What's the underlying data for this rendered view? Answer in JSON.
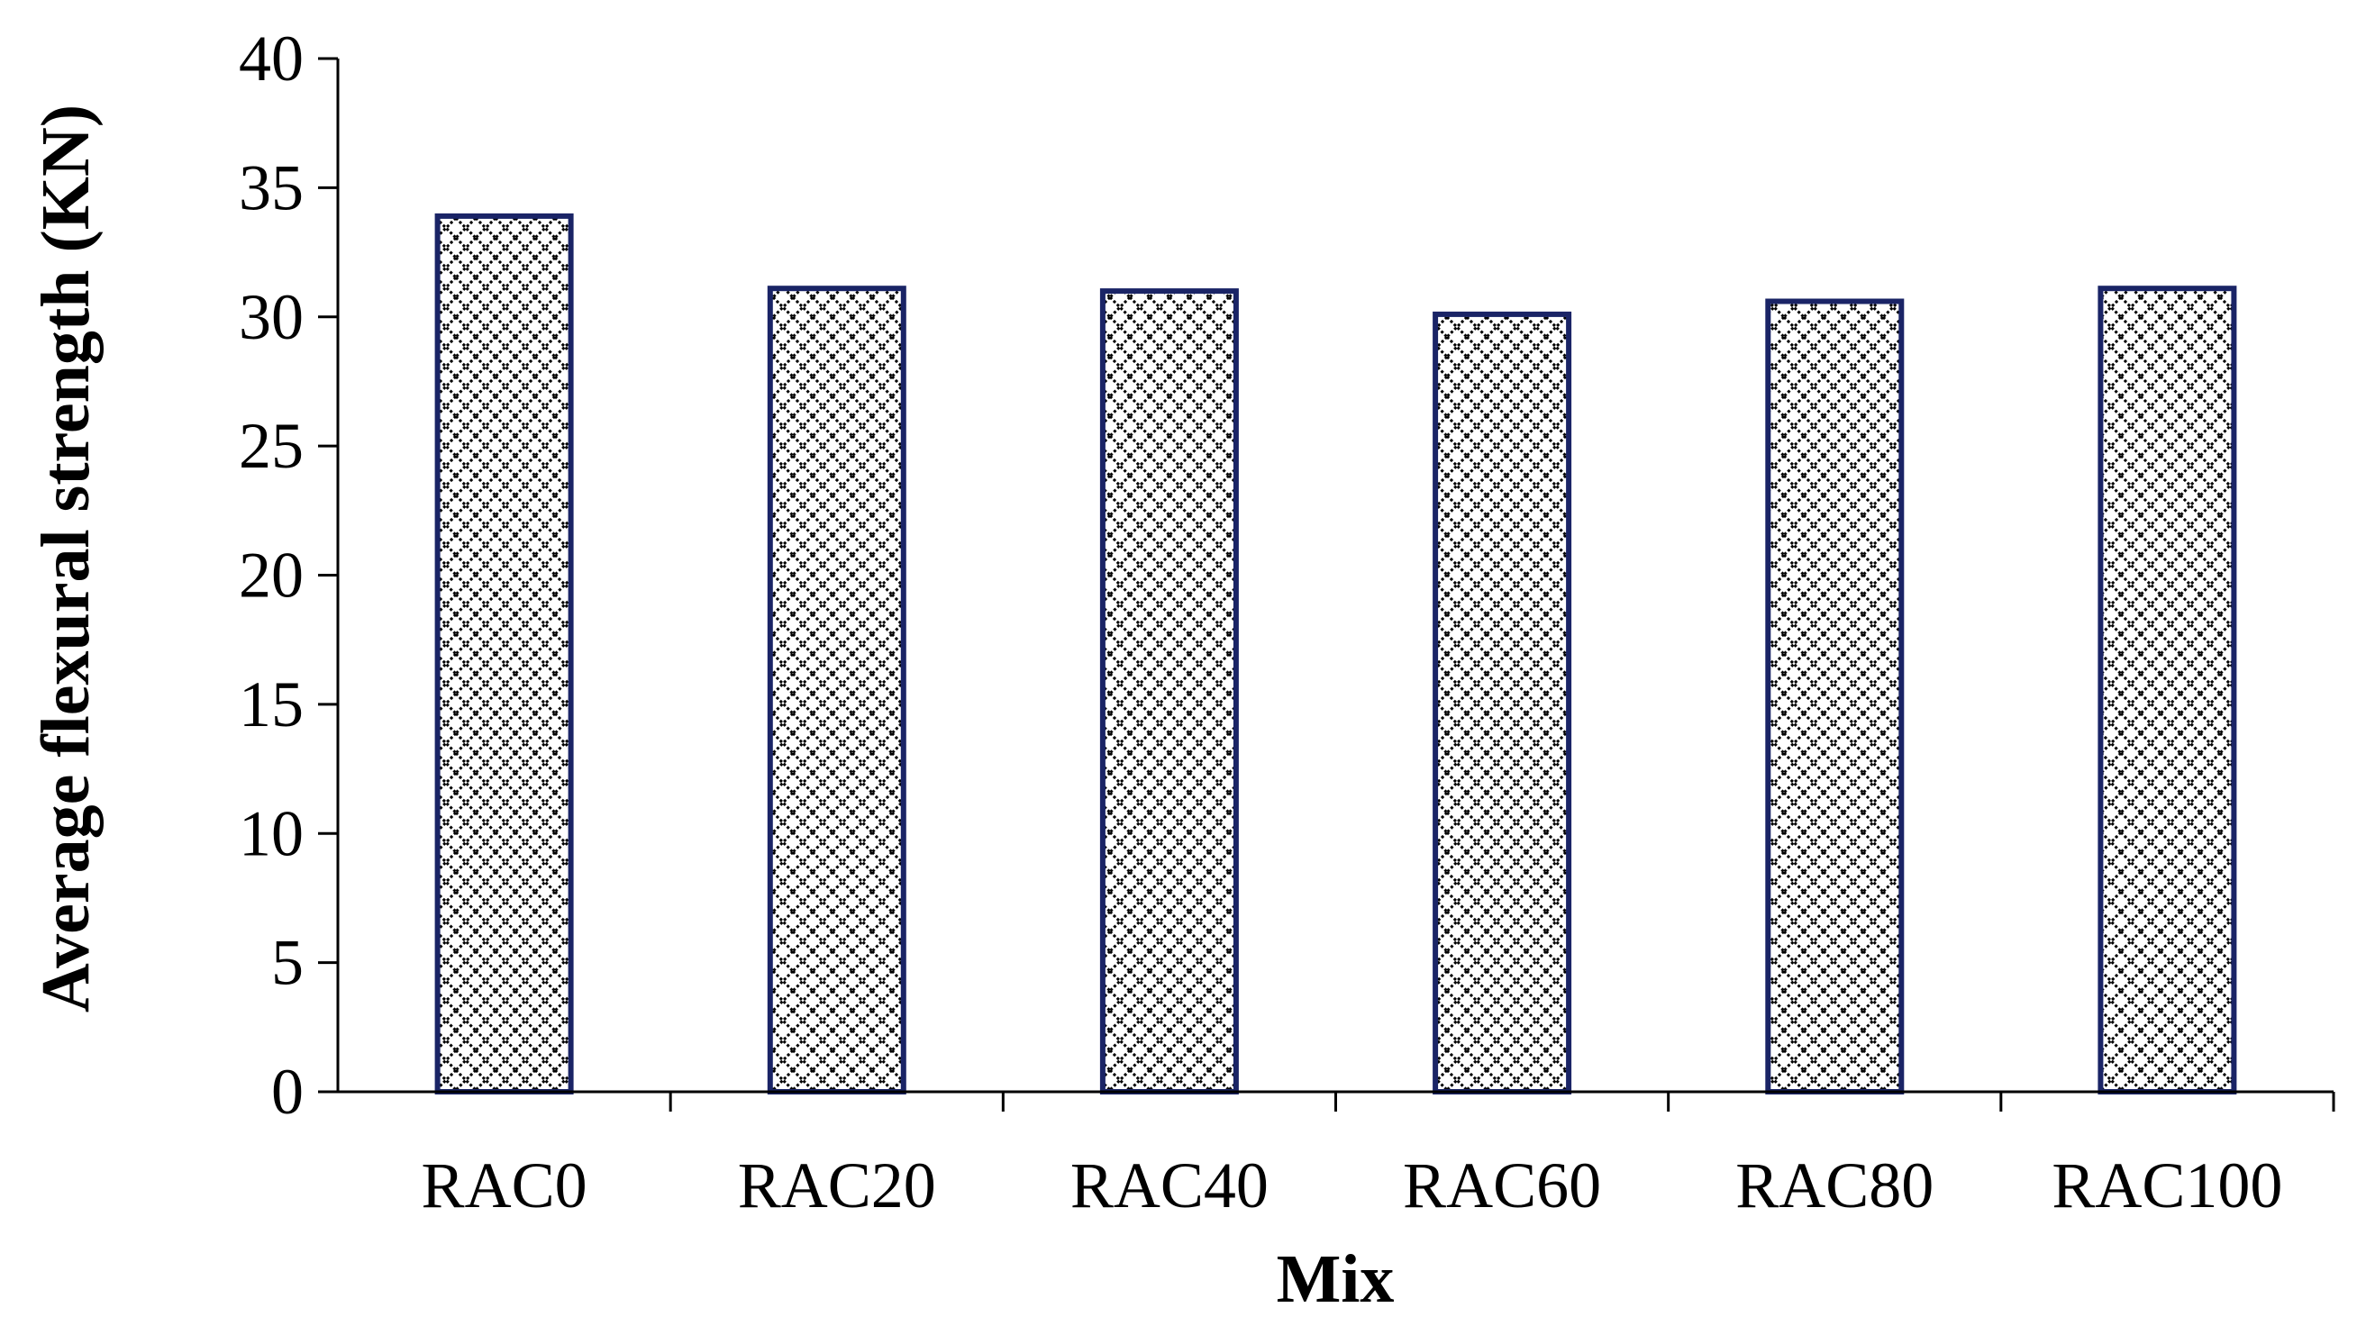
{
  "chart_data": {
    "type": "bar",
    "title": "",
    "xlabel": "Mix",
    "ylabel": "Average flexural strength (KN)",
    "categories": [
      "RAC0",
      "RAC20",
      "RAC40",
      "RAC60",
      "RAC80",
      "RAC100"
    ],
    "series": [
      {
        "values": [
          33.9,
          31.1,
          31.0,
          30.1,
          30.6,
          31.1
        ]
      }
    ],
    "ylim": [
      0,
      40
    ],
    "yticks": [
      0,
      5,
      10,
      15,
      20,
      25,
      30,
      35,
      40
    ],
    "grid": false,
    "legend": "none",
    "colors": {
      "bar_outline": "#1a2466",
      "bar_pattern": "#000000",
      "bar_background": "#ffffff",
      "axis": "#000000"
    },
    "bar_fill_pattern": "diagonal-crosshatch"
  }
}
